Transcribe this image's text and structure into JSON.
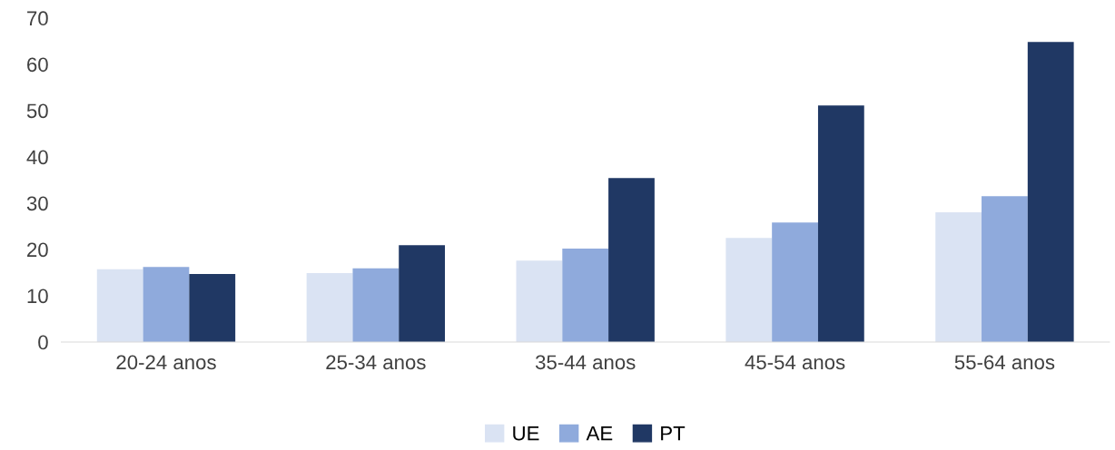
{
  "chart_data": {
    "type": "bar",
    "categories": [
      "20-24 anos",
      "25-34 anos",
      "35-44 anos",
      "45-54 anos",
      "55-64 anos"
    ],
    "series": [
      {
        "name": "UE",
        "color": "#dae3f3",
        "values": [
          15.7,
          14.9,
          17.6,
          22.5,
          28.0
        ]
      },
      {
        "name": "AE",
        "color": "#8faadc",
        "values": [
          16.2,
          15.9,
          20.2,
          25.8,
          31.5
        ]
      },
      {
        "name": "PT",
        "color": "#203864",
        "values": [
          14.7,
          20.9,
          35.4,
          51.1,
          64.8
        ]
      }
    ],
    "ylim": [
      0,
      70
    ],
    "yticks": [
      0,
      10,
      20,
      30,
      40,
      50,
      60,
      70
    ],
    "grid": false,
    "legend": "bottom"
  }
}
